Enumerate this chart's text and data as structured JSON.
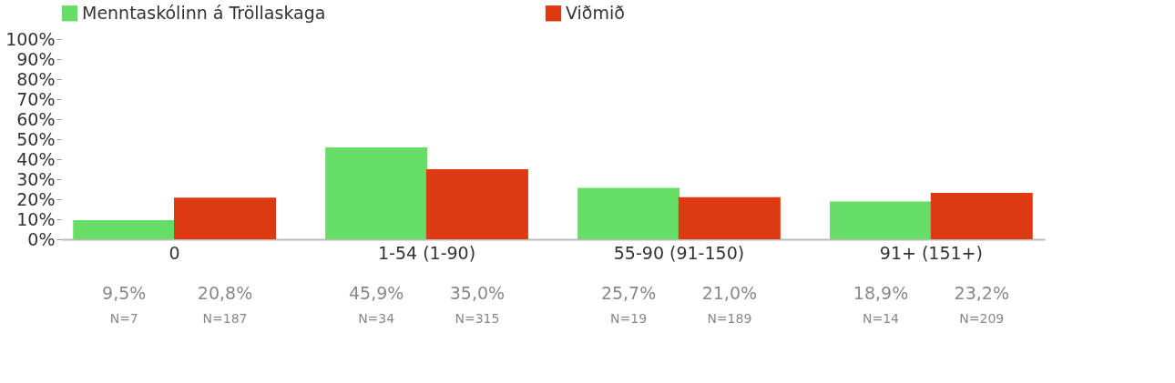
{
  "chart_data": {
    "type": "bar",
    "categories": [
      "0",
      "1-54 (1-90)",
      "55-90 (91-150)",
      "91+ (151+)"
    ],
    "series": [
      {
        "name": "Menntaskólinn á Tröllaskaga",
        "color": "#66dd66",
        "values": [
          9.5,
          45.9,
          25.7,
          18.9
        ],
        "value_labels": [
          "9,5%",
          "45,9%",
          "25,7%",
          "18,9%"
        ]
      },
      {
        "name": "Viðmið",
        "color": "#dd3a14",
        "values": [
          20.8,
          35.0,
          21.0,
          23.2
        ],
        "value_labels": [
          "20,8%",
          "35,0%",
          "21,0%",
          "23,2%"
        ]
      }
    ],
    "ylim": [
      0,
      100
    ],
    "yticks": [
      {
        "value": 0,
        "label": "0%"
      },
      {
        "value": 10,
        "label": "10%"
      },
      {
        "value": 20,
        "label": "20%"
      },
      {
        "value": 30,
        "label": "30%"
      },
      {
        "value": 40,
        "label": "40%"
      },
      {
        "value": 50,
        "label": "50%"
      },
      {
        "value": 60,
        "label": "60%"
      },
      {
        "value": 70,
        "label": "70%"
      },
      {
        "value": 80,
        "label": "80%"
      },
      {
        "value": 90,
        "label": "90%"
      },
      {
        "value": 100,
        "label": "100%"
      }
    ],
    "annotations": [
      "N=7",
      "N=187",
      "N=34",
      "N=315",
      "N=19",
      "N=189",
      "N=14",
      "N=209"
    ],
    "legend": "top",
    "grid": false
  }
}
